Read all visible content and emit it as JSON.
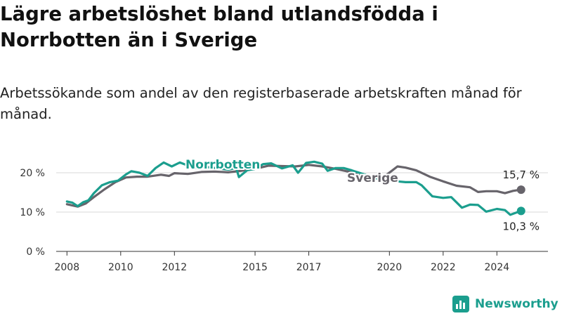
{
  "header": {
    "title": "Lägre arbetslöshet bland utlandsfödda i Norrbotten än i Sverige",
    "subtitle": "Arbetssökande som andel av den registerbaserade arbetskraften månad för månad."
  },
  "brand": {
    "name": "Newsworthy",
    "icon": "newsworthy-logo-icon"
  },
  "colors": {
    "norrbotten": "#1b9e8e",
    "sverige": "#67646b",
    "grid": "#d9d9d9",
    "axis": "#333333"
  },
  "chart_data": {
    "type": "line",
    "title": "Lägre arbetslöshet bland utlandsfödda i Norrbotten än i Sverige",
    "subtitle": "Arbetssökande som andel av den registerbaserade arbetskraften månad för månad.",
    "xlabel": "",
    "ylabel": "",
    "xlim": [
      2007.6,
      2025.9
    ],
    "ylim": [
      0,
      20
    ],
    "x_ticks": [
      2008,
      2010,
      2012,
      2015,
      2017,
      2020,
      2022,
      2024
    ],
    "x_tick_labels": [
      "2008",
      "2010",
      "2012",
      "2015",
      "2017",
      "2020",
      "2022",
      "2024"
    ],
    "y_ticks": [
      0,
      10,
      20
    ],
    "y_tick_labels": [
      "0 %",
      "10 %",
      "20 %"
    ],
    "grid": true,
    "series": [
      {
        "name": "Sverige",
        "color": "#67646b",
        "end_label": "15,7 %",
        "points": [
          [
            2008.0,
            12.0
          ],
          [
            2008.4,
            11.4
          ],
          [
            2008.7,
            12.2
          ],
          [
            2009.0,
            13.8
          ],
          [
            2009.4,
            15.8
          ],
          [
            2009.8,
            17.6
          ],
          [
            2010.2,
            18.8
          ],
          [
            2010.6,
            19.0
          ],
          [
            2011.0,
            19.0
          ],
          [
            2011.5,
            19.5
          ],
          [
            2011.8,
            19.2
          ],
          [
            2012.0,
            19.9
          ],
          [
            2012.5,
            19.7
          ],
          [
            2013.0,
            20.2
          ],
          [
            2013.5,
            20.3
          ],
          [
            2014.0,
            20.1
          ],
          [
            2014.5,
            20.5
          ],
          [
            2015.0,
            21.0
          ],
          [
            2015.5,
            21.8
          ],
          [
            2016.0,
            21.7
          ],
          [
            2016.5,
            21.6
          ],
          [
            2017.0,
            22.0
          ],
          [
            2017.5,
            21.6
          ],
          [
            2018.0,
            21.0
          ],
          [
            2018.6,
            20.1
          ],
          [
            2019.0,
            19.0
          ],
          [
            2019.5,
            18.6
          ],
          [
            2019.9,
            19.5
          ],
          [
            2020.3,
            21.6
          ],
          [
            2020.6,
            21.3
          ],
          [
            2021.0,
            20.6
          ],
          [
            2021.5,
            19.0
          ],
          [
            2022.0,
            17.8
          ],
          [
            2022.5,
            16.7
          ],
          [
            2023.0,
            16.3
          ],
          [
            2023.3,
            15.1
          ],
          [
            2023.6,
            15.3
          ],
          [
            2024.0,
            15.3
          ],
          [
            2024.3,
            14.8
          ],
          [
            2024.6,
            15.4
          ],
          [
            2024.9,
            15.7
          ]
        ]
      },
      {
        "name": "Norrbotten",
        "color": "#1b9e8e",
        "end_label": "10,3 %",
        "points": [
          [
            2008.0,
            12.7
          ],
          [
            2008.2,
            12.4
          ],
          [
            2008.4,
            11.5
          ],
          [
            2008.6,
            12.5
          ],
          [
            2008.8,
            13.0
          ],
          [
            2009.0,
            14.8
          ],
          [
            2009.3,
            16.8
          ],
          [
            2009.6,
            17.6
          ],
          [
            2009.9,
            18.0
          ],
          [
            2010.2,
            19.6
          ],
          [
            2010.4,
            20.4
          ],
          [
            2010.7,
            20.0
          ],
          [
            2011.0,
            19.2
          ],
          [
            2011.3,
            21.2
          ],
          [
            2011.6,
            22.6
          ],
          [
            2011.9,
            21.6
          ],
          [
            2012.2,
            22.6
          ],
          [
            2012.4,
            22.1
          ],
          [
            2012.7,
            21.0
          ],
          [
            2013.0,
            21.6
          ],
          [
            2014.0,
            20.8
          ],
          [
            2014.3,
            21.2
          ],
          [
            2014.4,
            18.9
          ],
          [
            2014.7,
            20.6
          ],
          [
            2015.0,
            21.0
          ],
          [
            2015.3,
            22.2
          ],
          [
            2015.6,
            22.4
          ],
          [
            2016.0,
            21.1
          ],
          [
            2016.4,
            21.9
          ],
          [
            2016.6,
            20.0
          ],
          [
            2016.9,
            22.5
          ],
          [
            2017.2,
            22.8
          ],
          [
            2017.5,
            22.3
          ],
          [
            2017.7,
            20.5
          ],
          [
            2018.0,
            21.2
          ],
          [
            2018.3,
            21.2
          ],
          [
            2018.6,
            20.6
          ],
          [
            2019.5,
            18.6
          ],
          [
            2020.0,
            18.1
          ],
          [
            2020.3,
            17.8
          ],
          [
            2020.6,
            17.6
          ],
          [
            2021.0,
            17.6
          ],
          [
            2021.2,
            16.8
          ],
          [
            2021.6,
            14.0
          ],
          [
            2022.0,
            13.6
          ],
          [
            2022.3,
            13.8
          ],
          [
            2022.7,
            11.1
          ],
          [
            2023.0,
            11.9
          ],
          [
            2023.3,
            11.8
          ],
          [
            2023.6,
            10.1
          ],
          [
            2024.0,
            10.8
          ],
          [
            2024.3,
            10.5
          ],
          [
            2024.5,
            9.3
          ],
          [
            2024.9,
            10.3
          ]
        ]
      }
    ]
  }
}
